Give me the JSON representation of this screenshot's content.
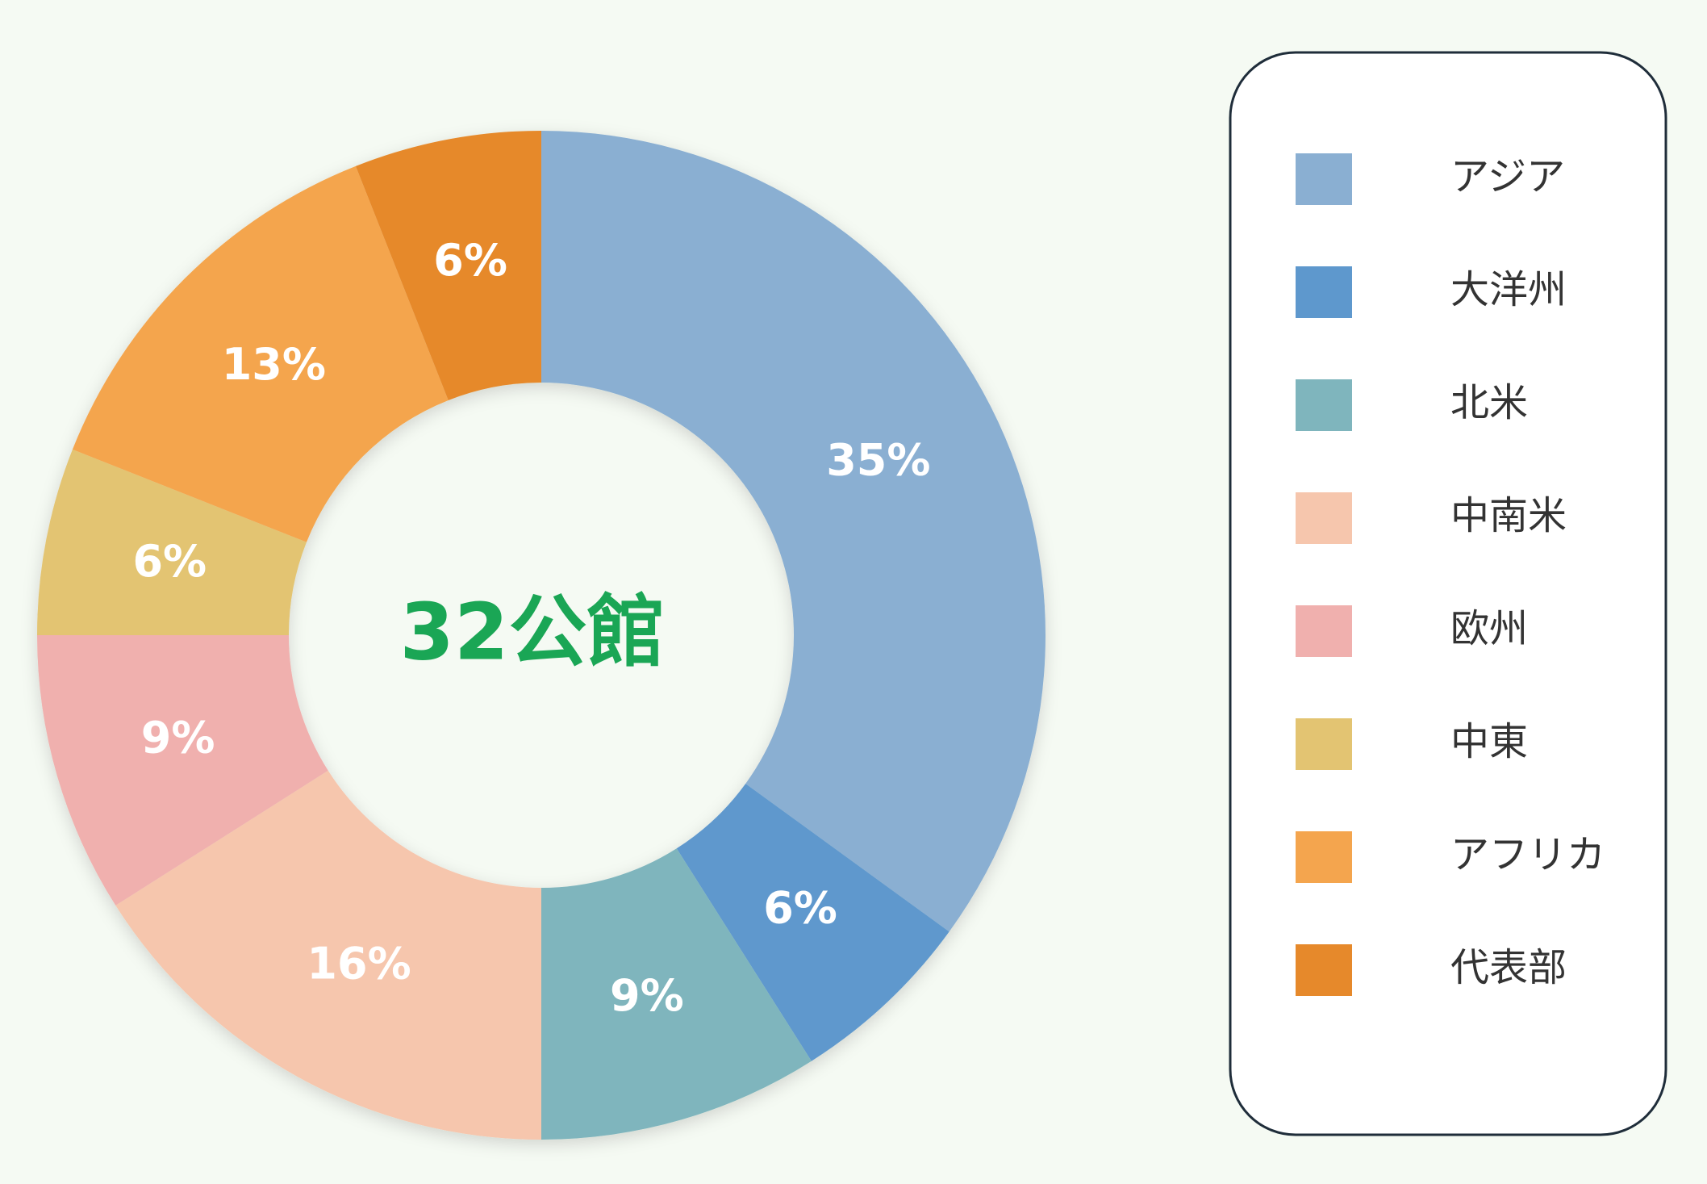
{
  "chart_data": {
    "type": "donut",
    "categories": [
      "アジア",
      "大洋州",
      "北米",
      "中南米",
      "欧州",
      "中東",
      "アフリカ",
      "代表部"
    ],
    "values": [
      35,
      6,
      9,
      16,
      9,
      6,
      13,
      6
    ],
    "value_labels": [
      "35%",
      "6%",
      "9%",
      "16%",
      "9%",
      "6%",
      "13%",
      "6%"
    ],
    "colors": [
      "#8aafd2",
      "#5e98cd",
      "#7fb5bd",
      "#f6c6ad",
      "#f0b0ae",
      "#e3c472",
      "#f4a54e",
      "#e6892b"
    ],
    "center_label": "32公館",
    "legend": "right"
  }
}
